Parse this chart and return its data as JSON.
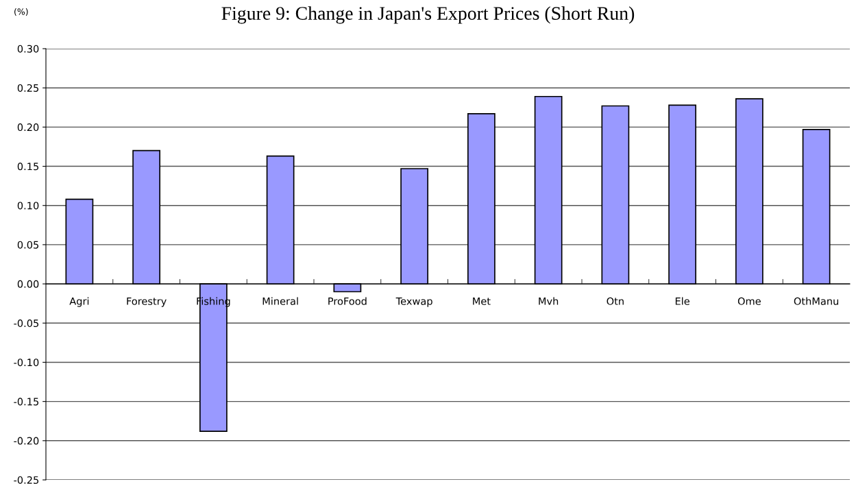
{
  "chart_data": {
    "type": "bar",
    "title": "Figure 9: Change in Japan's Export Prices (Short Run)",
    "ylabel": "(%)",
    "categories": [
      "Agri",
      "Forestry",
      "Fishing",
      "Mineral",
      "ProFood",
      "Texwap",
      "Met",
      "Mvh",
      "Otn",
      "Ele",
      "Ome",
      "OthManu"
    ],
    "values": [
      0.108,
      0.17,
      -0.188,
      0.163,
      -0.01,
      0.147,
      0.217,
      0.239,
      0.227,
      0.228,
      0.236,
      0.197
    ],
    "color": "#9999ff",
    "ylim": [
      -0.25,
      0.3
    ],
    "yticks": [
      {
        "value": -0.25,
        "label": "-0.25"
      },
      {
        "value": -0.2,
        "label": "-0.20"
      },
      {
        "value": -0.15,
        "label": "-0.15"
      },
      {
        "value": -0.1,
        "label": "-0.10"
      },
      {
        "value": -0.05,
        "label": "-0.05"
      },
      {
        "value": 0,
        "label": "0.00"
      },
      {
        "value": 0.05,
        "label": "0.05"
      },
      {
        "value": 0.1,
        "label": "0.10"
      },
      {
        "value": 0.15,
        "label": "0.15"
      },
      {
        "value": 0.2,
        "label": "0.20"
      },
      {
        "value": 0.25,
        "label": "0.25"
      },
      {
        "value": 0.3,
        "label": "0.30"
      }
    ],
    "grid": "y",
    "legend": false
  }
}
